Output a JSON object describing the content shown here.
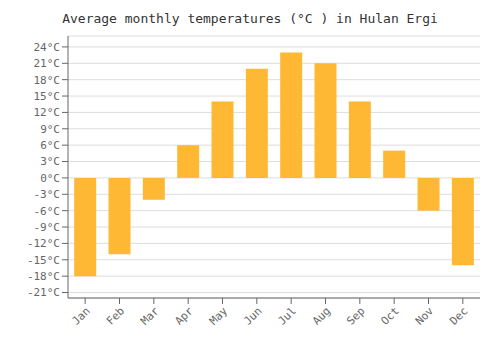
{
  "chart_data": {
    "type": "bar",
    "title": "Average monthly temperatures (°C ) in Hulan Ergi",
    "categories": [
      "Jan",
      "Feb",
      "Mar",
      "Apr",
      "May",
      "Jun",
      "Jul",
      "Aug",
      "Sep",
      "Oct",
      "Nov",
      "Dec"
    ],
    "values": [
      -18,
      -14,
      -4,
      6,
      14,
      20,
      23,
      21,
      14,
      5,
      -6,
      -16
    ],
    "color": "#FFB833",
    "ylim": [
      -22,
      26
    ],
    "yticks": [
      {
        "value": -21,
        "label": "-21°C"
      },
      {
        "value": -18,
        "label": "-18°C"
      },
      {
        "value": -15,
        "label": "-15°C"
      },
      {
        "value": -12,
        "label": "-12°C"
      },
      {
        "value": -9,
        "label": "-9°C"
      },
      {
        "value": -6,
        "label": "-6°C"
      },
      {
        "value": -3,
        "label": "-3°C"
      },
      {
        "value": 0,
        "label": "0°C"
      },
      {
        "value": 3,
        "label": "3°C"
      },
      {
        "value": 6,
        "label": "6°C"
      },
      {
        "value": 9,
        "label": "9°C"
      },
      {
        "value": 12,
        "label": "12°C"
      },
      {
        "value": 15,
        "label": "15°C"
      },
      {
        "value": 18,
        "label": "18°C"
      },
      {
        "value": 21,
        "label": "21°C"
      },
      {
        "value": 24,
        "label": "24°C"
      }
    ],
    "grid": true
  }
}
